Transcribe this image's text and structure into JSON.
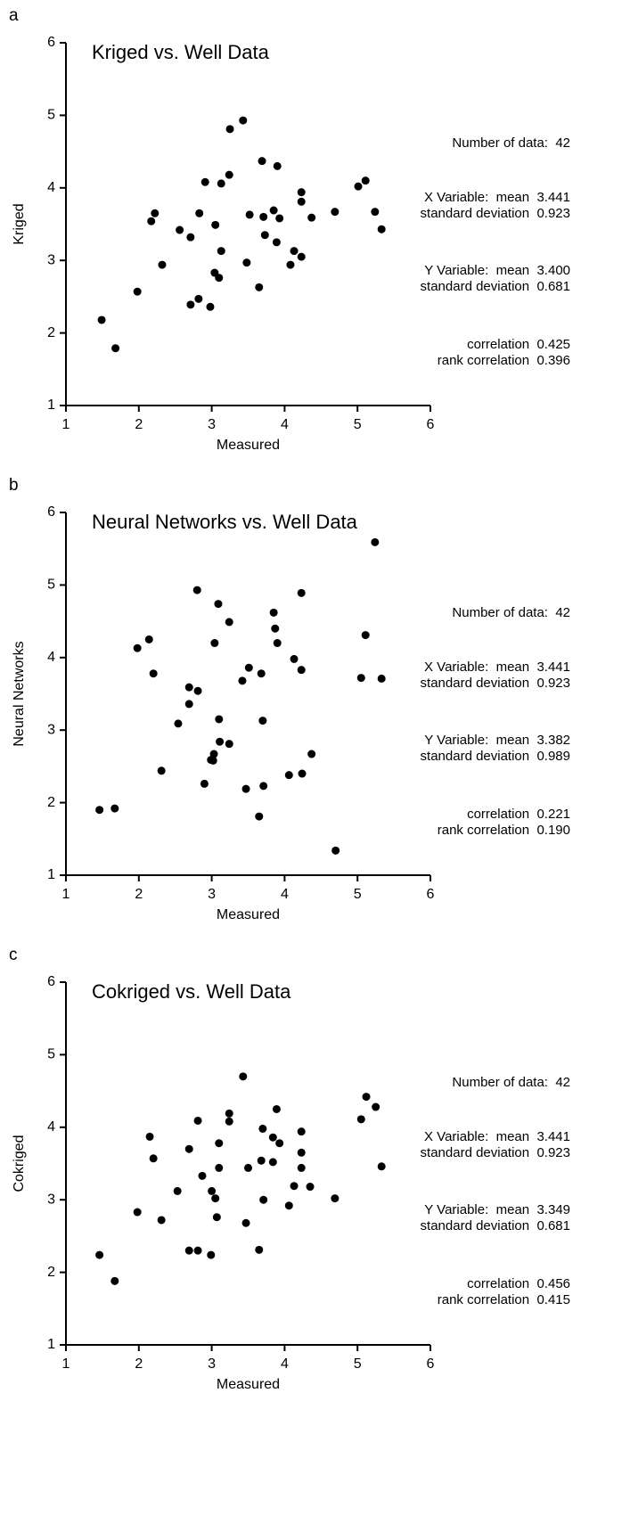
{
  "chart_data": [
    {
      "type": "scatter",
      "panel_label": "a",
      "title": "Kriged vs. Well Data",
      "x_label": "Measured",
      "y_label": "Kriged",
      "color": "#000000",
      "xlim": [
        1,
        6
      ],
      "ylim": [
        1,
        6
      ],
      "xticks": [
        1,
        2,
        3,
        4,
        5,
        6
      ],
      "yticks": [
        1,
        2,
        3,
        4,
        5,
        6
      ],
      "x": [
        1.49,
        1.68,
        1.98,
        2.17,
        2.22,
        2.32,
        2.56,
        2.71,
        2.71,
        2.82,
        2.83,
        2.91,
        2.98,
        3.05,
        3.04,
        3.13,
        3.1,
        3.13,
        3.24,
        3.25,
        3.43,
        3.48,
        3.52,
        3.65,
        3.69,
        3.71,
        3.73,
        3.85,
        3.89,
        3.9,
        3.93,
        4.08,
        4.13,
        4.23,
        4.23,
        4.23,
        4.37,
        4.69,
        5.01,
        5.11,
        5.24,
        5.33
      ],
      "y": [
        2.18,
        1.79,
        2.57,
        3.54,
        3.65,
        2.94,
        3.42,
        3.32,
        2.39,
        2.47,
        3.65,
        4.08,
        2.36,
        3.49,
        2.83,
        3.13,
        2.76,
        4.06,
        4.18,
        4.81,
        4.93,
        2.97,
        3.63,
        2.63,
        4.37,
        3.6,
        3.35,
        3.69,
        3.25,
        4.3,
        3.58,
        2.94,
        3.13,
        3.94,
        3.81,
        3.05,
        3.59,
        3.67,
        4.02,
        4.1,
        3.67,
        3.43
      ],
      "annotations": [
        [
          "Number of data:  42"
        ],
        [
          "X Variable:  mean  3.441",
          "standard deviation  0.923"
        ],
        [
          "Y Variable:  mean  3.400",
          "standard deviation  0.681"
        ],
        [
          "correlation  0.425",
          "rank correlation  0.396"
        ]
      ]
    },
    {
      "type": "scatter",
      "panel_label": "b",
      "title": "Neural Networks vs. Well Data",
      "x_label": "Measured",
      "y_label": "Neural Networks",
      "color": "#000000",
      "xlim": [
        1,
        6
      ],
      "ylim": [
        1,
        6
      ],
      "xticks": [
        1,
        2,
        3,
        4,
        5,
        6
      ],
      "yticks": [
        1,
        2,
        3,
        4,
        5,
        6
      ],
      "x": [
        1.46,
        1.67,
        1.98,
        2.14,
        2.2,
        2.31,
        2.54,
        2.69,
        2.69,
        2.81,
        2.8,
        2.9,
        2.99,
        3.03,
        3.04,
        3.09,
        3.1,
        3.11,
        3.24,
        3.24,
        3.42,
        3.47,
        3.51,
        3.65,
        3.68,
        3.7,
        3.71,
        3.85,
        3.87,
        3.9,
        4.06,
        4.13,
        4.23,
        4.24,
        4.23,
        4.37,
        4.7,
        5.05,
        5.11,
        5.24,
        5.33,
        3.02
      ],
      "y": [
        1.9,
        1.92,
        4.13,
        4.25,
        3.78,
        2.44,
        3.09,
        3.59,
        3.36,
        3.54,
        4.93,
        2.26,
        2.59,
        2.67,
        4.2,
        4.74,
        3.15,
        2.84,
        2.81,
        4.49,
        3.68,
        2.19,
        3.86,
        1.81,
        3.78,
        3.13,
        2.23,
        4.62,
        4.4,
        4.2,
        2.38,
        3.98,
        3.83,
        2.4,
        4.89,
        2.67,
        1.34,
        3.72,
        4.31,
        5.59,
        3.71,
        2.58
      ],
      "annotations": [
        [
          "Number of data:  42"
        ],
        [
          "X Variable:  mean  3.441",
          "standard deviation  0.923"
        ],
        [
          "Y Variable:  mean  3.382",
          "standard deviation  0.989"
        ],
        [
          "correlation  0.221",
          "rank correlation  0.190"
        ]
      ]
    },
    {
      "type": "scatter",
      "panel_label": "c",
      "title": "Cokriged vs. Well Data",
      "x_label": "Measured",
      "y_label": "Cokriged",
      "color": "#000000",
      "xlim": [
        1,
        6
      ],
      "ylim": [
        1,
        6
      ],
      "xticks": [
        1,
        2,
        3,
        4,
        5,
        6
      ],
      "yticks": [
        1,
        2,
        3,
        4,
        5,
        6
      ],
      "x": [
        1.46,
        1.67,
        1.98,
        2.15,
        2.2,
        2.31,
        2.53,
        2.69,
        2.69,
        2.81,
        2.81,
        2.87,
        2.99,
        3.0,
        3.05,
        3.1,
        3.07,
        3.1,
        3.24,
        3.24,
        3.43,
        3.47,
        3.5,
        3.65,
        3.68,
        3.7,
        3.71,
        3.84,
        3.89,
        3.93,
        4.06,
        4.13,
        4.23,
        4.23,
        4.23,
        4.35,
        4.69,
        5.05,
        5.12,
        5.25,
        5.33,
        3.84
      ],
      "y": [
        2.24,
        1.88,
        2.83,
        3.87,
        3.57,
        2.72,
        3.12,
        3.7,
        2.3,
        4.09,
        2.3,
        3.33,
        2.24,
        3.12,
        3.02,
        3.44,
        2.76,
        3.78,
        4.19,
        4.08,
        4.7,
        2.68,
        3.44,
        2.31,
        3.54,
        3.98,
        3.0,
        3.52,
        4.25,
        3.78,
        2.92,
        3.19,
        3.94,
        3.65,
        3.44,
        3.18,
        3.02,
        4.11,
        4.42,
        4.28,
        3.46,
        3.86
      ],
      "annotations": [
        [
          "Number of data:  42"
        ],
        [
          "X Variable:  mean  3.441",
          "standard deviation  0.923"
        ],
        [
          "Y Variable:  mean  3.349",
          "standard deviation  0.681"
        ],
        [
          "correlation  0.456",
          "rank correlation  0.415"
        ]
      ]
    }
  ]
}
